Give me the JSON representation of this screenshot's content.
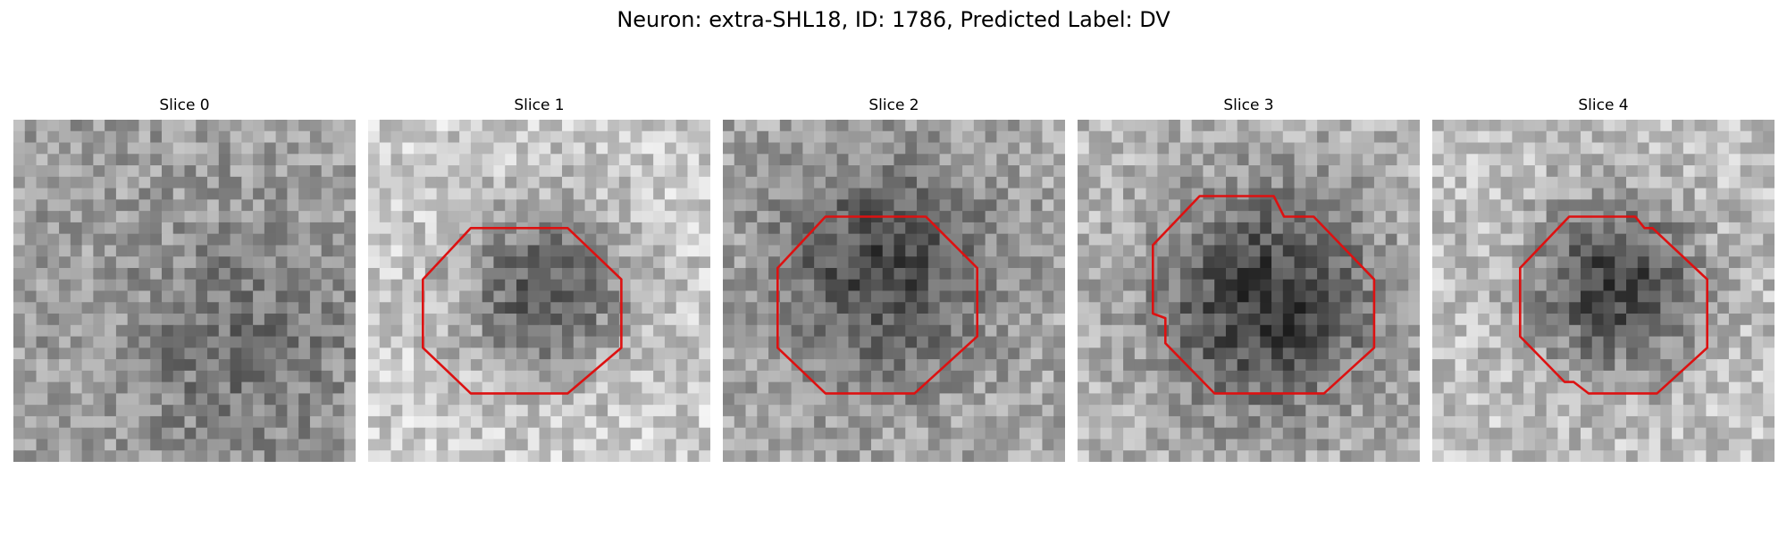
{
  "figure": {
    "title": "Neuron: extra-SHL18, ID: 1786, Predicted Label: DV"
  },
  "panels": [
    {
      "title": "Slice 0",
      "has_contour": false
    },
    {
      "title": "Slice 1",
      "has_contour": true
    },
    {
      "title": "Slice 2",
      "has_contour": true
    },
    {
      "title": "Slice 3",
      "has_contour": true
    },
    {
      "title": "Slice 4",
      "has_contour": true
    }
  ],
  "colors": {
    "contour": "#dd1111",
    "background": "#ffffff",
    "colormap": "gray"
  }
}
